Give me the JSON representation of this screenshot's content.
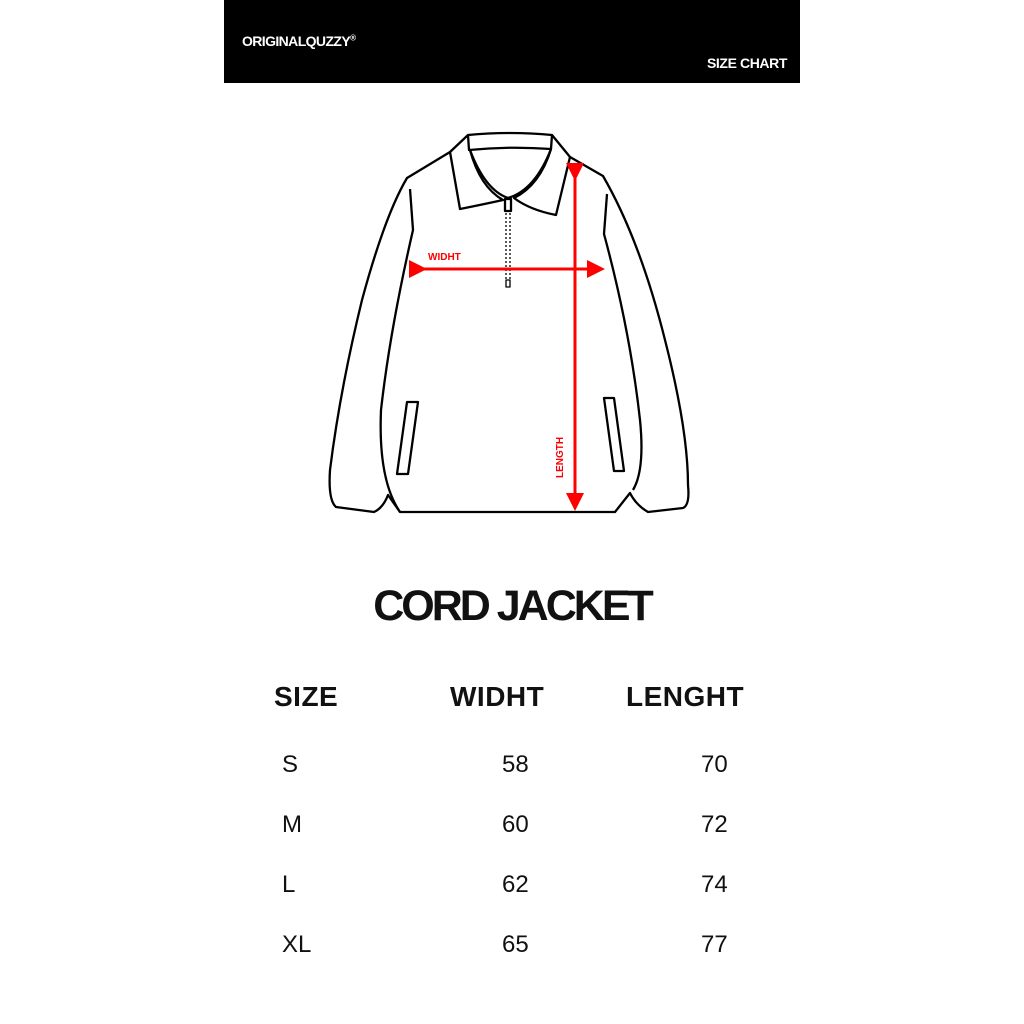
{
  "header": {
    "brand": "ORIGINALQUZZY",
    "brand_mark": "®",
    "label": "SIZE CHART"
  },
  "diagram": {
    "width_label": "WIDHT",
    "length_label": "LENGTH",
    "accent_color": "#ff0000"
  },
  "title": "CORD JACKET",
  "table": {
    "headers": [
      "SIZE",
      "WIDHT",
      "LENGHT"
    ],
    "rows": [
      [
        "S",
        "58",
        "70"
      ],
      [
        "M",
        "60",
        "72"
      ],
      [
        "L",
        "62",
        "74"
      ],
      [
        "XL",
        "65",
        "77"
      ]
    ]
  }
}
